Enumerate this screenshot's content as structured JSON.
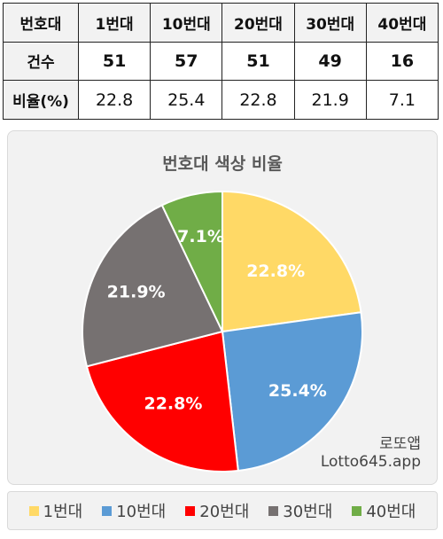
{
  "table": {
    "header": [
      "번호대",
      "1번대",
      "10번대",
      "20번대",
      "30번대",
      "40번대"
    ],
    "count_label": "건수",
    "counts": [
      "51",
      "57",
      "51",
      "49",
      "16"
    ],
    "ratio_label": "비율(%)",
    "ratios": [
      "22.8",
      "25.4",
      "22.8",
      "21.9",
      "7.1"
    ]
  },
  "chart_data": {
    "type": "pie",
    "title": "번호대 색상 비율",
    "categories": [
      "1번대",
      "10번대",
      "20번대",
      "30번대",
      "40번대"
    ],
    "values": [
      22.8,
      25.4,
      22.8,
      21.9,
      7.1
    ],
    "data_labels": [
      "22.8%",
      "25.4%",
      "22.8%",
      "21.9%",
      "7.1%"
    ],
    "colors": [
      "#FFD966",
      "#5B9BD5",
      "#FF0000",
      "#767171",
      "#70AD47"
    ],
    "start": "12 o'clock",
    "direction": "clockwise",
    "legend_position": "bottom"
  },
  "watermark": {
    "line1": "로또앱",
    "line2": "Lotto645.app"
  }
}
